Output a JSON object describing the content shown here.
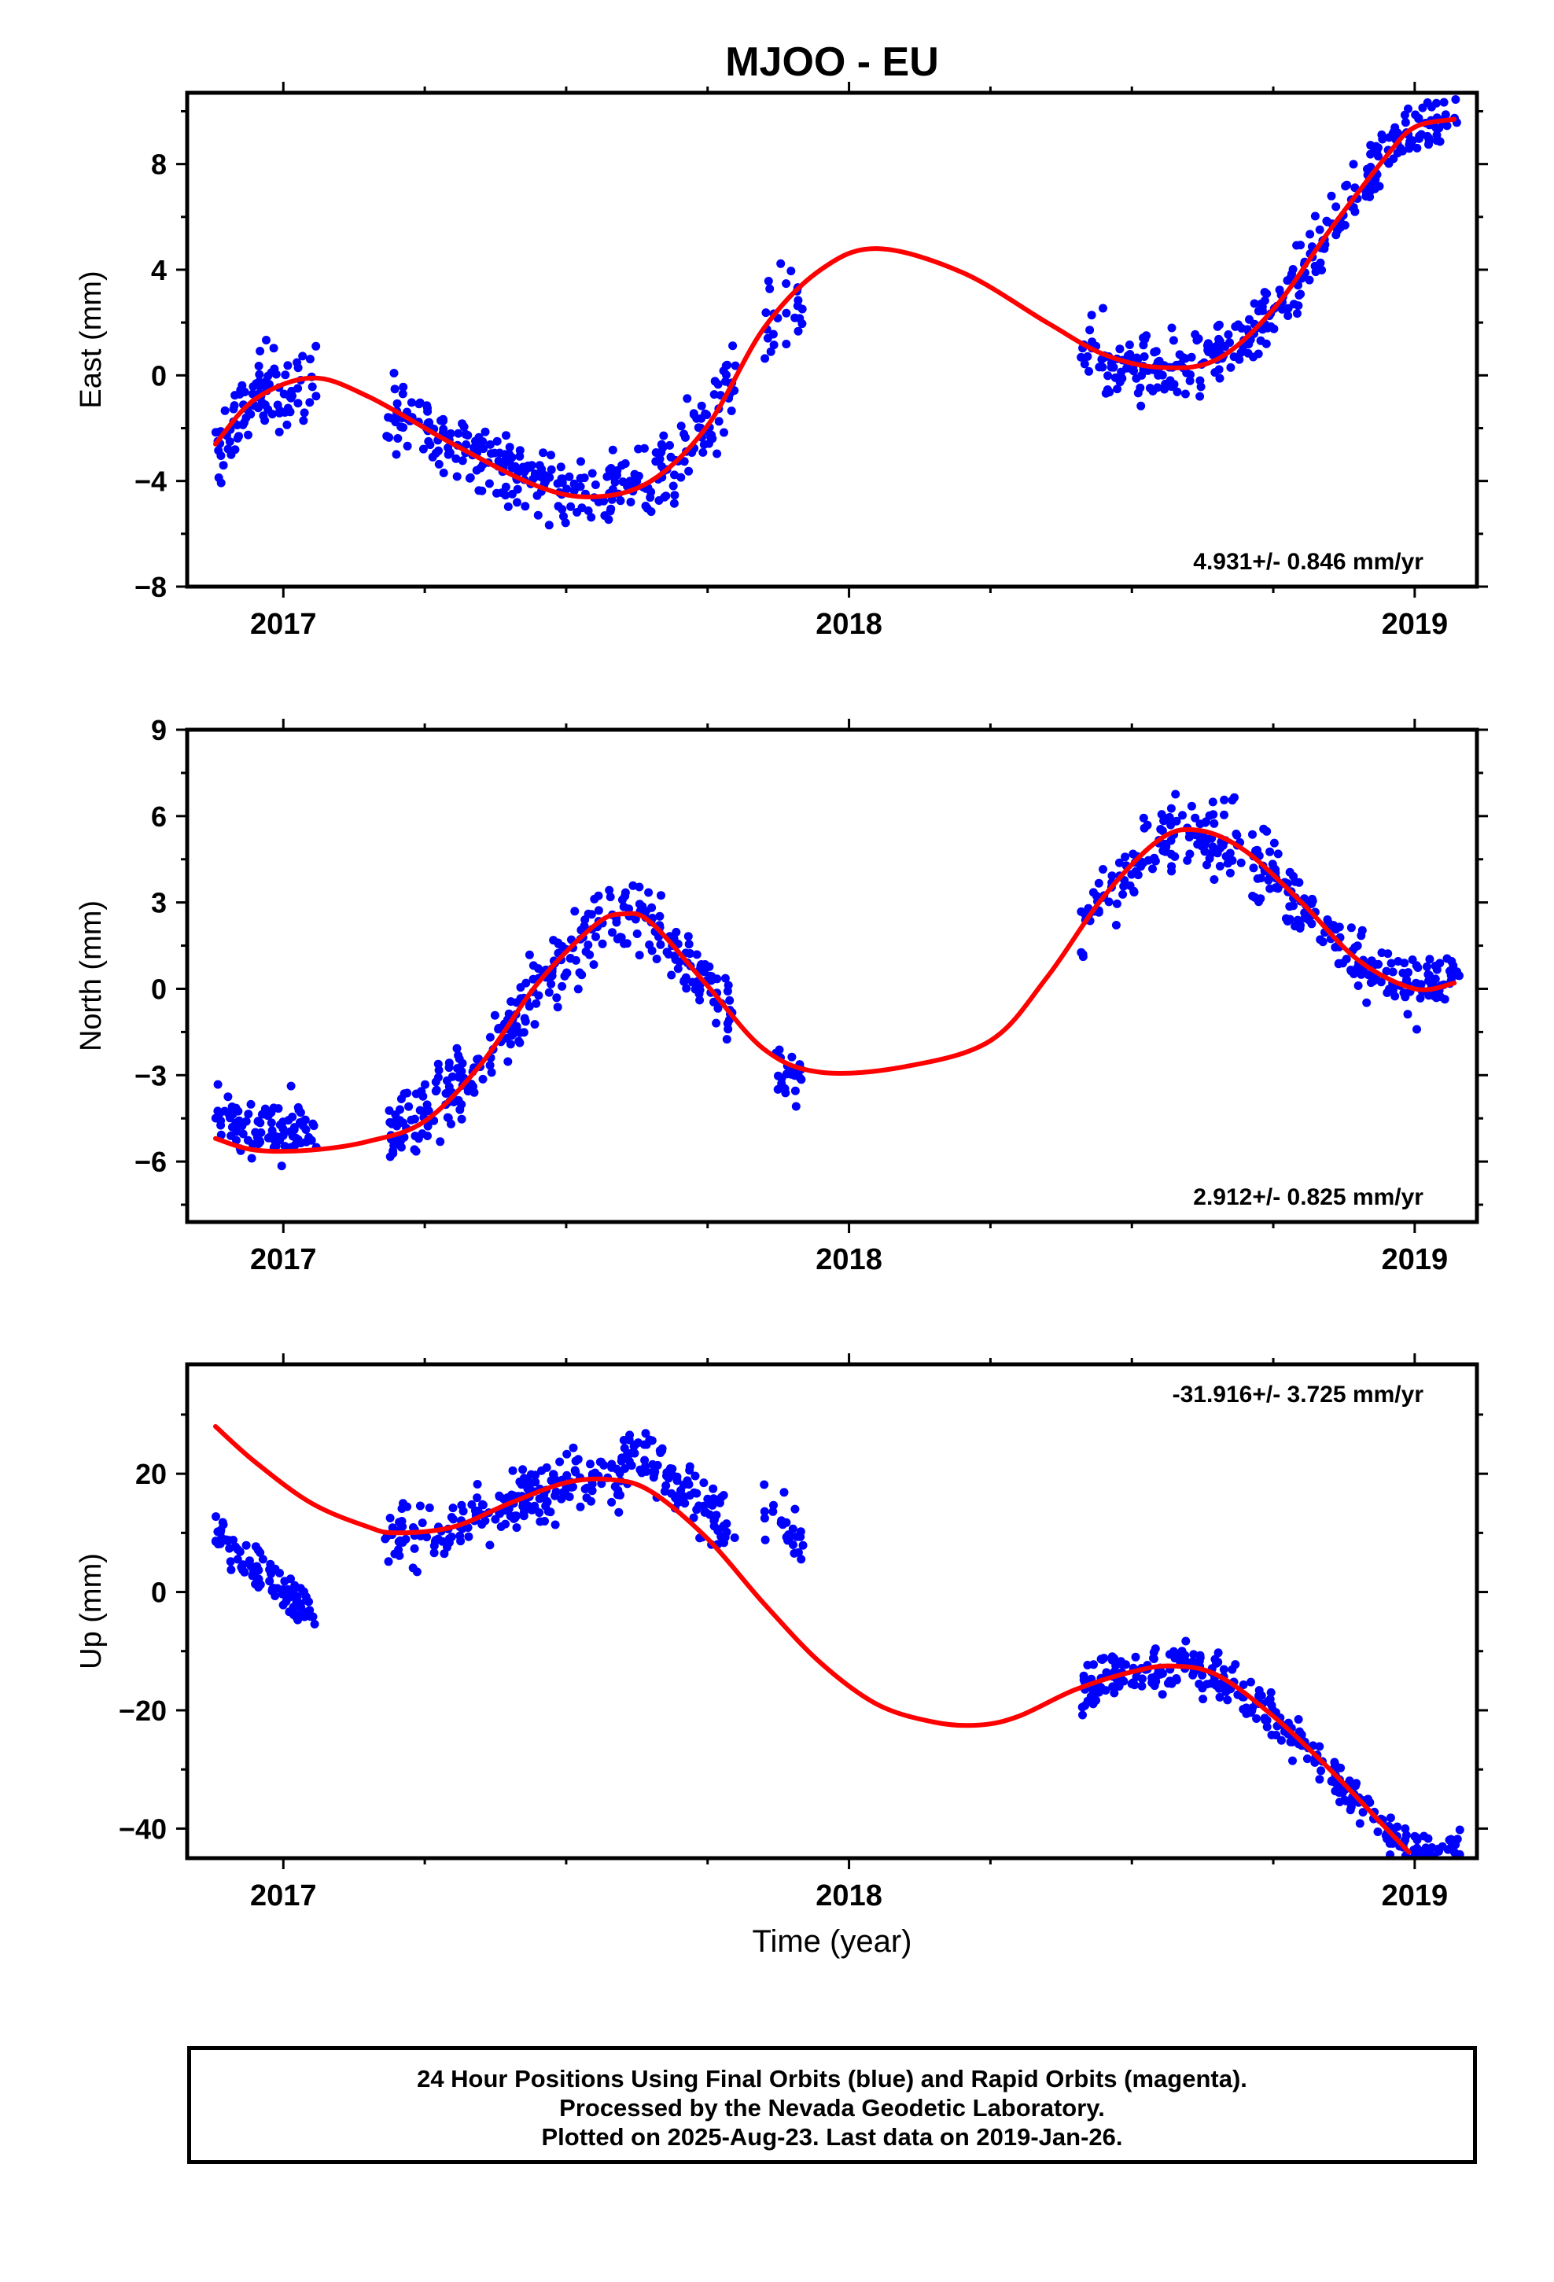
{
  "title": "MJOO - EU",
  "x_axis_label": "Time (year)",
  "footer": {
    "line1": "24 Hour Positions Using Final Orbits (blue) and Rapid Orbits (magenta).",
    "line2": "Processed by the Nevada Geodetic Laboratory.",
    "line3": "Plotted on 2025-Aug-23. Last data on 2019-Jan-26."
  },
  "colors": {
    "points": "#0000ff",
    "fit": "#ff0000",
    "frame": "#000000"
  },
  "chart_data": [
    {
      "type": "scatter",
      "ylabel": "East (mm)",
      "rate_text": "4.931+/- 0.846 mm/yr",
      "rate_position": "bottom-right",
      "xlim": [
        2016.83,
        2019.11
      ],
      "ylim": [
        -8,
        10.7
      ],
      "x_ticks": [
        2017,
        2018,
        2019
      ],
      "x_minor_ticks": [
        2017.25,
        2017.5,
        2017.75,
        2018.25,
        2018.5,
        2018.75
      ],
      "y_ticks": [
        -8,
        -4,
        0,
        4,
        8
      ],
      "y_tick_labels": [
        "−8",
        "−4",
        "0",
        "4",
        "8"
      ],
      "y_minor_ticks": [
        -6,
        -2,
        2,
        6,
        10
      ],
      "fit_series": {
        "name": "fit",
        "x": [
          2016.88,
          2016.95,
          2017.05,
          2017.15,
          2017.3,
          2017.45,
          2017.55,
          2017.65,
          2017.75,
          2017.85,
          2017.95,
          2018.05,
          2018.2,
          2018.35,
          2018.45,
          2018.55,
          2018.65,
          2018.75,
          2018.85,
          2018.95,
          2019.0,
          2019.07
        ],
        "y": [
          -2.6,
          -0.9,
          -0.1,
          -0.8,
          -2.6,
          -4.2,
          -4.6,
          -4.0,
          -1.9,
          1.8,
          4.0,
          4.8,
          3.9,
          2.0,
          0.8,
          0.3,
          0.6,
          2.5,
          5.5,
          8.3,
          9.4,
          9.7
        ]
      },
      "point_groups": [
        {
          "x_start": 2016.88,
          "x_end": 2017.06,
          "n": 95,
          "y_offset": 0.0,
          "y_spread": 1.3
        },
        {
          "x_start": 2017.18,
          "x_end": 2017.8,
          "n": 300,
          "y_offset": 0.0,
          "y_spread": 1.2
        },
        {
          "x_start": 2017.85,
          "x_end": 2017.92,
          "n": 25,
          "y_offset": 0.0,
          "y_spread": 1.4
        },
        {
          "x_start": 2018.41,
          "x_end": 2019.08,
          "n": 320,
          "y_offset": 0.0,
          "y_spread": 1.0
        }
      ]
    },
    {
      "type": "scatter",
      "ylabel": "North (mm)",
      "rate_text": "2.912+/- 0.825 mm/yr",
      "rate_position": "bottom-right",
      "xlim": [
        2016.83,
        2019.11
      ],
      "ylim": [
        -8.1,
        9
      ],
      "x_ticks": [
        2017,
        2018,
        2019
      ],
      "x_minor_ticks": [
        2017.25,
        2017.5,
        2017.75,
        2018.25,
        2018.5,
        2018.75
      ],
      "y_ticks": [
        -6,
        -3,
        0,
        3,
        6,
        9
      ],
      "y_tick_labels": [
        "−6",
        "−3",
        "0",
        "3",
        "6",
        "9"
      ],
      "y_minor_ticks": [
        -7.5,
        -4.5,
        -1.5,
        1.5,
        4.5,
        7.5
      ],
      "fit_series": {
        "name": "fit",
        "x": [
          2016.88,
          2016.95,
          2017.05,
          2017.15,
          2017.25,
          2017.35,
          2017.45,
          2017.55,
          2017.6,
          2017.65,
          2017.75,
          2017.85,
          2017.95,
          2018.1,
          2018.25,
          2018.35,
          2018.45,
          2018.55,
          2018.62,
          2018.7,
          2018.8,
          2018.9,
          2019.0,
          2019.07
        ],
        "y": [
          -5.2,
          -5.6,
          -5.6,
          -5.3,
          -4.6,
          -2.6,
          0.2,
          2.2,
          2.6,
          2.3,
          0.1,
          -2.1,
          -2.9,
          -2.7,
          -1.8,
          0.4,
          3.2,
          5.2,
          5.5,
          4.8,
          3.0,
          1.0,
          0.0,
          0.2
        ]
      },
      "point_groups": [
        {
          "x_start": 2016.88,
          "x_end": 2017.06,
          "n": 95,
          "y_offset": 0.6,
          "y_spread": 0.9
        },
        {
          "x_start": 2017.18,
          "x_end": 2017.8,
          "n": 300,
          "y_offset": 0.0,
          "y_spread": 1.1
        },
        {
          "x_start": 2017.87,
          "x_end": 2017.92,
          "n": 25,
          "y_offset": -0.5,
          "y_spread": 1.0
        },
        {
          "x_start": 2018.41,
          "x_end": 2019.08,
          "n": 320,
          "y_offset": 0.0,
          "y_spread": 1.0
        }
      ]
    },
    {
      "type": "scatter",
      "ylabel": "Up (mm)",
      "rate_text": "-31.916+/- 3.725 mm/yr",
      "rate_position": "top-right",
      "xlim": [
        2016.83,
        2019.11
      ],
      "ylim": [
        -45,
        38.5
      ],
      "x_ticks": [
        2017,
        2018,
        2019
      ],
      "x_minor_ticks": [
        2017.25,
        2017.5,
        2017.75,
        2018.25,
        2018.5,
        2018.75
      ],
      "y_ticks": [
        -40,
        -20,
        0,
        20
      ],
      "y_tick_labels": [
        "−40",
        "−20",
        "0",
        "20"
      ],
      "y_minor_ticks": [
        -30,
        -10,
        10,
        30
      ],
      "fit_series": {
        "name": "fit",
        "x": [
          2016.88,
          2016.95,
          2017.05,
          2017.15,
          2017.2,
          2017.3,
          2017.4,
          2017.5,
          2017.58,
          2017.65,
          2017.75,
          2017.85,
          2017.95,
          2018.05,
          2018.15,
          2018.23,
          2018.3,
          2018.4,
          2018.5,
          2018.57,
          2018.65,
          2018.75,
          2018.85,
          2018.95,
          2018.99
        ],
        "y": [
          28,
          22,
          15,
          11,
          10,
          11,
          15,
          18.5,
          19,
          17,
          9,
          -2,
          -12,
          -19,
          -22,
          -22.5,
          -21,
          -16.5,
          -13.5,
          -12.5,
          -14,
          -21,
          -30,
          -40,
          -44
        ]
      },
      "point_groups": [
        {
          "x_start": 2016.88,
          "x_end": 2017.06,
          "n": 95,
          "y_offset": -18.0,
          "y_spread": 3.2
        },
        {
          "x_start": 2017.18,
          "x_end": 2017.6,
          "n": 200,
          "y_offset": 0.0,
          "y_spread": 4.5
        },
        {
          "x_start": 2017.6,
          "x_end": 2017.8,
          "n": 100,
          "y_offset": 5.0,
          "y_spread": 4.5
        },
        {
          "x_start": 2017.85,
          "x_end": 2017.92,
          "n": 25,
          "y_offset": 16.0,
          "y_spread": 4.0
        },
        {
          "x_start": 2018.41,
          "x_end": 2018.7,
          "n": 150,
          "y_offset": 0.0,
          "y_spread": 3.5
        },
        {
          "x_start": 2018.7,
          "x_end": 2019.08,
          "n": 170,
          "y_offset": 0.0,
          "y_spread": 3.0
        }
      ]
    }
  ]
}
